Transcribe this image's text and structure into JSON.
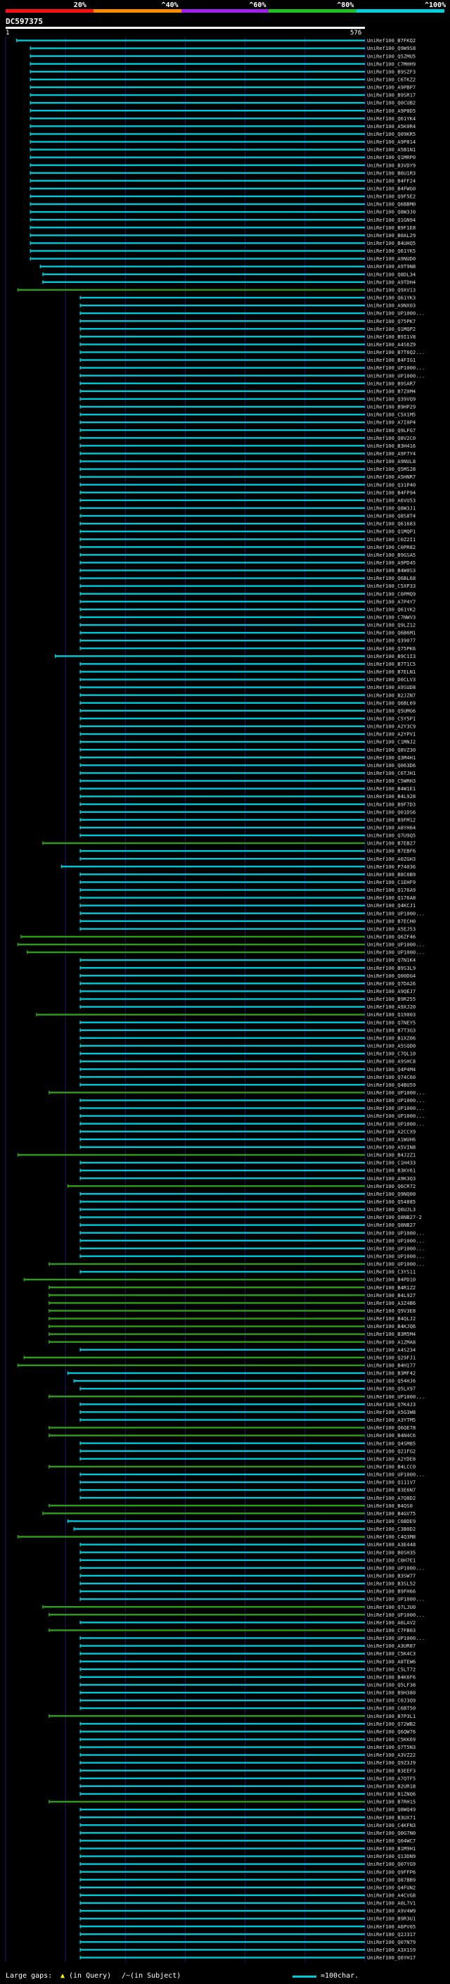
{
  "header": {
    "scale": [
      {
        "label": "20%",
        "color": "#ff1010"
      },
      {
        "label": "^40%",
        "color": "#ff8c00"
      },
      {
        "label": "^60%",
        "color": "#a020f0"
      },
      {
        "label": "^80%",
        "color": "#20c020"
      },
      {
        "label": "^100%",
        "color": "#00d0e0"
      }
    ],
    "query_name": "DC597375",
    "query_start": "1",
    "query_end": "576"
  },
  "colors": {
    "cyan": "#00c8d8",
    "green": "#2e9e1a",
    "grid": "#1a1a6a",
    "label": "#dddddd"
  },
  "footer": {
    "gaps_label": "Large gaps:",
    "query_gap": "(in Query)",
    "subject_gap": "/~(in Subject)",
    "scale_note": "=100char."
  },
  "chart_data": {
    "type": "alignment",
    "query_length": 576,
    "rows": [
      [
        "UniRef100_B7FKQ2",
        18,
        "c"
      ],
      [
        "UniRef100_Q9W9S8",
        40,
        "c"
      ],
      [
        "UniRef100_Q5ZMU5",
        40,
        "c"
      ],
      [
        "UniRef100_C7MHH9",
        40,
        "c"
      ],
      [
        "UniRef100_B9SZF3",
        40,
        "c"
      ],
      [
        "UniRef100_C6TKZ2",
        40,
        "c"
      ],
      [
        "UniRef100_A9PBP7",
        40,
        "c"
      ],
      [
        "UniRef100_B9SR17",
        40,
        "c"
      ],
      [
        "UniRef100_Q0CUB2",
        40,
        "c"
      ],
      [
        "UniRef100_A9P8D5",
        40,
        "c"
      ],
      [
        "UniRef100_Q61YK4",
        40,
        "c"
      ],
      [
        "UniRef100_A5K0R4",
        40,
        "c"
      ],
      [
        "UniRef100_Q09KR5",
        40,
        "c"
      ],
      [
        "UniRef100_A9P814",
        40,
        "c"
      ],
      [
        "UniRef100_A5B1N1",
        40,
        "c"
      ],
      [
        "UniRef100_Q1MRP0",
        40,
        "c"
      ],
      [
        "UniRef100_B3VDY9",
        40,
        "c"
      ],
      [
        "UniRef100_B6U1R3",
        40,
        "c"
      ],
      [
        "UniRef100_B4FF24",
        40,
        "c"
      ],
      [
        "UniRef100_B4FWG0",
        40,
        "c"
      ],
      [
        "UniRef100_Q9F5E2",
        40,
        "c"
      ],
      [
        "UniRef100_Q6BBM0",
        40,
        "c"
      ],
      [
        "UniRef100_Q8W3J0",
        40,
        "c"
      ],
      [
        "UniRef100_Q1GN94",
        40,
        "c"
      ],
      [
        "UniRef100_B9F1E8",
        40,
        "c"
      ],
      [
        "UniRef100_B0AL29",
        40,
        "c"
      ],
      [
        "UniRef100_B4UHQ5",
        40,
        "c"
      ],
      [
        "UniRef100_Q61YK5",
        40,
        "c"
      ],
      [
        "UniRef100_A9NUD0",
        40,
        "c"
      ],
      [
        "UniRef100_A9T9N8",
        56,
        "c"
      ],
      [
        "UniRef100_Q8DL34",
        60,
        "c"
      ],
      [
        "UniRef100_A9TDH4",
        60,
        "c"
      ],
      [
        "UniRef100_Q9XV13",
        20,
        "g"
      ],
      [
        "UniRef100_Q61YK3",
        120,
        "c"
      ],
      [
        "UniRef100_A9NX03",
        120,
        "c"
      ],
      [
        "UniRef100_UP1000...",
        120,
        "c"
      ],
      [
        "UniRef100_Q75PK7",
        120,
        "c"
      ],
      [
        "UniRef100_Q1MQP2",
        120,
        "c"
      ],
      [
        "UniRef100_B9I1V8",
        120,
        "c"
      ],
      [
        "UniRef100_A4S6Z9",
        120,
        "c"
      ],
      [
        "UniRef100_B7T6Q2...",
        120,
        "c"
      ],
      [
        "UniRef100_B4FIG1",
        120,
        "c"
      ],
      [
        "UniRef100_UP1000...",
        120,
        "c"
      ],
      [
        "UniRef100_UP1000...",
        120,
        "c"
      ],
      [
        "UniRef100_B9SAR7",
        120,
        "c"
      ],
      [
        "UniRef100_B7Z0M4",
        120,
        "c"
      ],
      [
        "UniRef100_Q39VQ9",
        120,
        "c"
      ],
      [
        "UniRef100_B9HP29",
        120,
        "c"
      ],
      [
        "UniRef100_C5X1M5",
        120,
        "c"
      ],
      [
        "UniRef100_A7I0P4",
        120,
        "c"
      ],
      [
        "UniRef100_Q9LFG7",
        120,
        "c"
      ],
      [
        "UniRef100_Q8V2C0",
        120,
        "c"
      ],
      [
        "UniRef100_B3H416",
        120,
        "c"
      ],
      [
        "UniRef100_A9F7Y4",
        120,
        "c"
      ],
      [
        "UniRef100_A9NUL8",
        120,
        "c"
      ],
      [
        "UniRef100_Q5MS28",
        120,
        "c"
      ],
      [
        "UniRef100_A5HNR7",
        120,
        "c"
      ],
      [
        "UniRef100_Q31P40",
        120,
        "c"
      ],
      [
        "UniRef100_B4FP94",
        120,
        "c"
      ],
      [
        "UniRef100_A6VU53",
        120,
        "c"
      ],
      [
        "UniRef100_Q8W3J1",
        120,
        "c"
      ],
      [
        "UniRef100_Q8S8T4",
        120,
        "c"
      ],
      [
        "UniRef100_Q61683",
        120,
        "c"
      ],
      [
        "UniRef100_Q1MQP1",
        120,
        "c"
      ],
      [
        "UniRef100_C0Z2I1",
        120,
        "c"
      ],
      [
        "UniRef100_C0PR82",
        120,
        "c"
      ],
      [
        "UniRef100_B9GSA5",
        120,
        "c"
      ],
      [
        "UniRef100_A9PD45",
        120,
        "c"
      ],
      [
        "UniRef100_B4W0S3",
        120,
        "c"
      ],
      [
        "UniRef100_Q6BL68",
        120,
        "c"
      ],
      [
        "UniRef100_C5XP33",
        120,
        "c"
      ],
      [
        "UniRef100_C0PMQ9",
        120,
        "c"
      ],
      [
        "UniRef100_A7P4Y7",
        120,
        "c"
      ],
      [
        "UniRef100_Q61YK2",
        120,
        "c"
      ],
      [
        "UniRef100_C7NWV3",
        120,
        "c"
      ],
      [
        "UniRef100_Q9LZ12",
        120,
        "c"
      ],
      [
        "UniRef100_Q6B6M1",
        120,
        "c"
      ],
      [
        "UniRef100_Q39077",
        120,
        "c"
      ],
      [
        "UniRef100_Q75PK6",
        120,
        "c"
      ],
      [
        "UniRef100_B9C1I3",
        80,
        "c"
      ],
      [
        "UniRef100_B7T1C5",
        120,
        "c"
      ],
      [
        "UniRef100_B7ELN1",
        120,
        "c"
      ],
      [
        "UniRef100_D0CLV3",
        120,
        "c"
      ],
      [
        "UniRef100_A9SUD8",
        120,
        "c"
      ],
      [
        "UniRef100_B2JZN7",
        120,
        "c"
      ],
      [
        "UniRef100_Q6BL69",
        120,
        "c"
      ],
      [
        "UniRef100_Q5UMG6",
        120,
        "c"
      ],
      [
        "UniRef100_C5Y5P1",
        120,
        "c"
      ],
      [
        "UniRef100_A2Y3C9",
        120,
        "c"
      ],
      [
        "UniRef100_A2YPV1",
        120,
        "c"
      ],
      [
        "UniRef100_C1MNJ2",
        120,
        "c"
      ],
      [
        "UniRef100_Q8VZ30",
        120,
        "c"
      ],
      [
        "UniRef100_Q3M4H1",
        120,
        "c"
      ],
      [
        "UniRef100_Q063D6",
        120,
        "c"
      ],
      [
        "UniRef100_C6TJH1",
        120,
        "c"
      ],
      [
        "UniRef100_C5WRH3",
        120,
        "c"
      ],
      [
        "UniRef100_B4W1E1",
        120,
        "c"
      ],
      [
        "UniRef100_B4L928",
        120,
        "c"
      ],
      [
        "UniRef100_B9F7D3",
        120,
        "c"
      ],
      [
        "UniRef100_Q01DS6",
        120,
        "c"
      ],
      [
        "UniRef100_B9FM12",
        120,
        "c"
      ],
      [
        "UniRef100_A8YH64",
        120,
        "c"
      ],
      [
        "UniRef100_Q7U9Q5",
        120,
        "c"
      ],
      [
        "UniRef100_B7EB27",
        60,
        "g"
      ],
      [
        "UniRef100_B7EBF6",
        120,
        "c"
      ],
      [
        "UniRef100_A0ZGH3",
        120,
        "c"
      ],
      [
        "UniRef100_P74036",
        90,
        "c"
      ],
      [
        "UniRef100_B8C6B9",
        120,
        "c"
      ],
      [
        "UniRef100_C1EHF9",
        120,
        "c"
      ],
      [
        "UniRef100_Q176A9",
        120,
        "c"
      ],
      [
        "UniRef100_Q176A8",
        120,
        "c"
      ],
      [
        "UniRef100_Q4KCJ1",
        120,
        "c"
      ],
      [
        "UniRef100_UP1000...",
        120,
        "c"
      ],
      [
        "UniRef100_B7ECH0",
        120,
        "c"
      ],
      [
        "UniRef100_A5EJ53",
        120,
        "c"
      ],
      [
        "UniRef100_Q6ZF46",
        25,
        "g"
      ],
      [
        "UniRef100_UP1000...",
        20,
        "g"
      ],
      [
        "UniRef100_UP1000...",
        35,
        "g"
      ],
      [
        "UniRef100_Q7N1K4",
        120,
        "c"
      ],
      [
        "UniRef100_B9S3L9",
        120,
        "c"
      ],
      [
        "UniRef100_Q00DG4",
        120,
        "c"
      ],
      [
        "UniRef100_Q7DA26",
        120,
        "c"
      ],
      [
        "UniRef100_A9QEJ7",
        120,
        "c"
      ],
      [
        "UniRef100_B9R255",
        120,
        "c"
      ],
      [
        "UniRef100_A9XJ20",
        120,
        "c"
      ],
      [
        "UniRef100_Q19003",
        50,
        "g"
      ],
      [
        "UniRef100_Q7NEY5",
        120,
        "c"
      ],
      [
        "UniRef100_B7T3G3",
        120,
        "c"
      ],
      [
        "UniRef100_B1XZ06",
        120,
        "c"
      ],
      [
        "UniRef100_A5SQD0",
        120,
        "c"
      ],
      [
        "UniRef100_C7QL10",
        120,
        "c"
      ],
      [
        "UniRef100_A9SHC8",
        120,
        "c"
      ],
      [
        "UniRef100_Q4P4M4",
        120,
        "c"
      ],
      [
        "UniRef100_Q74C60",
        120,
        "c"
      ],
      [
        "UniRef100_Q4BU59",
        120,
        "c"
      ],
      [
        "UniRef100_UP1000...",
        70,
        "g"
      ],
      [
        "UniRef100_UP1000...",
        120,
        "c"
      ],
      [
        "UniRef100_UP1000...",
        120,
        "c"
      ],
      [
        "UniRef100_UP1000...",
        120,
        "c"
      ],
      [
        "UniRef100_UP1000...",
        120,
        "c"
      ],
      [
        "UniRef100_A2CCX9",
        120,
        "c"
      ],
      [
        "UniRef100_A1WUH6",
        120,
        "c"
      ],
      [
        "UniRef100_A5VIN8",
        120,
        "c"
      ],
      [
        "UniRef100_B4J2Z1",
        20,
        "g"
      ],
      [
        "UniRef100_C1H433",
        120,
        "c"
      ],
      [
        "UniRef100_B3KV61",
        120,
        "c"
      ],
      [
        "UniRef100_A9K3Q3",
        120,
        "c"
      ],
      [
        "UniRef100_Q6CR72",
        100,
        "g"
      ],
      [
        "UniRef100_Q9NQ00",
        120,
        "c"
      ],
      [
        "UniRef100_Q54885",
        120,
        "c"
      ],
      [
        "UniRef100_Q6UJL3",
        120,
        "c"
      ],
      [
        "UniRef100_Q8NB27-2",
        120,
        "c"
      ],
      [
        "UniRef100_Q8NB27",
        120,
        "c"
      ],
      [
        "UniRef100_UP1000...",
        120,
        "c"
      ],
      [
        "UniRef100_UP1000...",
        120,
        "c"
      ],
      [
        "UniRef100_UP1000...",
        120,
        "c"
      ],
      [
        "UniRef100_UP1000...",
        120,
        "c"
      ],
      [
        "UniRef100_UP1000...",
        70,
        "g"
      ],
      [
        "UniRef100_C3YS11",
        120,
        "c"
      ],
      [
        "UniRef100_B4PD10",
        30,
        "g"
      ],
      [
        "UniRef100_B4R1Z2",
        70,
        "g"
      ],
      [
        "UniRef100_B4L927",
        70,
        "g"
      ],
      [
        "UniRef100_A3Z4B6",
        70,
        "g"
      ],
      [
        "UniRef100_Q9V3E8",
        70,
        "g"
      ],
      [
        "UniRef100_B4QLJ2",
        70,
        "g"
      ],
      [
        "UniRef100_B4KJQ6",
        70,
        "g"
      ],
      [
        "UniRef100_B3M5M4",
        70,
        "g"
      ],
      [
        "UniRef100_A1ZMA8",
        70,
        "g"
      ],
      [
        "UniRef100_A4S234",
        120,
        "c"
      ],
      [
        "UniRef100_Q29FJ1",
        30,
        "g"
      ],
      [
        "UniRef100_B4H177",
        20,
        "g"
      ],
      [
        "UniRef100_B3MF42",
        100,
        "c"
      ],
      [
        "UniRef100_Q54HJ6",
        110,
        "c"
      ],
      [
        "UniRef100_Q5LX97",
        120,
        "c"
      ],
      [
        "UniRef100_UP1000...",
        70,
        "g"
      ],
      [
        "UniRef100_Q7K4J3",
        120,
        "c"
      ],
      [
        "UniRef100_A5G3W8",
        120,
        "c"
      ],
      [
        "UniRef100_A3YTM5",
        120,
        "c"
      ],
      [
        "UniRef100_Q6QE78",
        70,
        "g"
      ],
      [
        "UniRef100_B4N4C6",
        70,
        "g"
      ],
      [
        "UniRef100_Q4SM85",
        120,
        "c"
      ],
      [
        "UniRef100_Q21FG2",
        120,
        "c"
      ],
      [
        "UniRef100_A2YDE8",
        120,
        "c"
      ],
      [
        "UniRef100_B4LCC0",
        70,
        "g"
      ],
      [
        "UniRef100_UP1000...",
        120,
        "c"
      ],
      [
        "UniRef100_Q111V7",
        120,
        "c"
      ],
      [
        "UniRef100_B3E6N7",
        120,
        "c"
      ],
      [
        "UniRef100_A7Q8D2",
        120,
        "c"
      ],
      [
        "UniRef100_B4QS0",
        70,
        "g"
      ],
      [
        "UniRef100_B4GV75",
        60,
        "g"
      ],
      [
        "UniRef100_C6BDE9",
        100,
        "c"
      ],
      [
        "UniRef100_C3B0D2",
        110,
        "c"
      ],
      [
        "UniRef100_C4Q3M8",
        20,
        "g"
      ],
      [
        "UniRef100_A3E448",
        120,
        "c"
      ],
      [
        "UniRef100_B0SH35",
        120,
        "c"
      ],
      [
        "UniRef100_C0H7E1",
        120,
        "c"
      ],
      [
        "UniRef100_UP1000...",
        120,
        "c"
      ],
      [
        "UniRef100_B3SW77",
        120,
        "c"
      ],
      [
        "UniRef100_B3SL52",
        120,
        "c"
      ],
      [
        "UniRef100_B9FH66",
        120,
        "c"
      ],
      [
        "UniRef100_UP1000...",
        120,
        "c"
      ],
      [
        "UniRef100_Q7LJU0",
        60,
        "g"
      ],
      [
        "UniRef100_UP1000...",
        70,
        "g"
      ],
      [
        "UniRef100_A6LAV2",
        120,
        "c"
      ],
      [
        "UniRef100_C7FB03",
        70,
        "g"
      ],
      [
        "UniRef100_UP1000...",
        120,
        "c"
      ],
      [
        "UniRef100_A3UR87",
        120,
        "c"
      ],
      [
        "UniRef100_C5K4C3",
        120,
        "c"
      ],
      [
        "UniRef100_A8TEW6",
        120,
        "c"
      ],
      [
        "UniRef100_C5LT72",
        120,
        "c"
      ],
      [
        "UniRef100_B4K6F6",
        120,
        "c"
      ],
      [
        "UniRef100_Q5LF38",
        120,
        "c"
      ],
      [
        "UniRef100_B9H380",
        120,
        "c"
      ],
      [
        "UniRef100_C0J3Q9",
        120,
        "c"
      ],
      [
        "UniRef100_C6BT50",
        120,
        "c"
      ],
      [
        "UniRef100_B7P3L1",
        70,
        "g"
      ],
      [
        "UniRef100_Q72WB2",
        120,
        "c"
      ],
      [
        "UniRef100_Q6QW76",
        120,
        "c"
      ],
      [
        "UniRef100_C5KK69",
        120,
        "c"
      ],
      [
        "UniRef100_Q7T5N3",
        120,
        "c"
      ],
      [
        "UniRef100_A3VZ22",
        120,
        "c"
      ],
      [
        "UniRef100_Q9Z3J9",
        120,
        "c"
      ],
      [
        "UniRef100_B3EEF3",
        120,
        "c"
      ],
      [
        "UniRef100_A7QTF5",
        120,
        "c"
      ],
      [
        "UniRef100_B2UR18",
        120,
        "c"
      ],
      [
        "UniRef100_B1ZNQ6",
        120,
        "c"
      ],
      [
        "UniRef100_B7RH15",
        70,
        "g"
      ],
      [
        "UniRef100_Q8WQ49",
        120,
        "c"
      ],
      [
        "UniRef100_B3UX71",
        120,
        "c"
      ],
      [
        "UniRef100_C4KFN3",
        120,
        "c"
      ],
      [
        "UniRef100_Q0G7N0",
        120,
        "c"
      ],
      [
        "UniRef100_Q04WC7",
        120,
        "c"
      ],
      [
        "UniRef100_B1M9H1",
        120,
        "c"
      ],
      [
        "UniRef100_Q13DN9",
        120,
        "c"
      ],
      [
        "UniRef100_Q07YG9",
        120,
        "c"
      ],
      [
        "UniRef100_Q9FFP6",
        120,
        "c"
      ],
      [
        "UniRef100_Q87BB9",
        120,
        "c"
      ],
      [
        "UniRef100_Q4FUN2",
        120,
        "c"
      ],
      [
        "UniRef100_A4CVG8",
        120,
        "c"
      ],
      [
        "UniRef100_A0L7V1",
        120,
        "c"
      ],
      [
        "UniRef100_A9V4W9",
        120,
        "c"
      ],
      [
        "UniRef100_B9R3U1",
        120,
        "c"
      ],
      [
        "UniRef100_A6PV05",
        120,
        "c"
      ],
      [
        "UniRef100_Q2J317",
        120,
        "c"
      ],
      [
        "UniRef100_Q07N79",
        120,
        "c"
      ],
      [
        "UniRef100_A3X1S9",
        120,
        "c"
      ],
      [
        "UniRef100_Q6YH17",
        120,
        "c"
      ]
    ]
  }
}
